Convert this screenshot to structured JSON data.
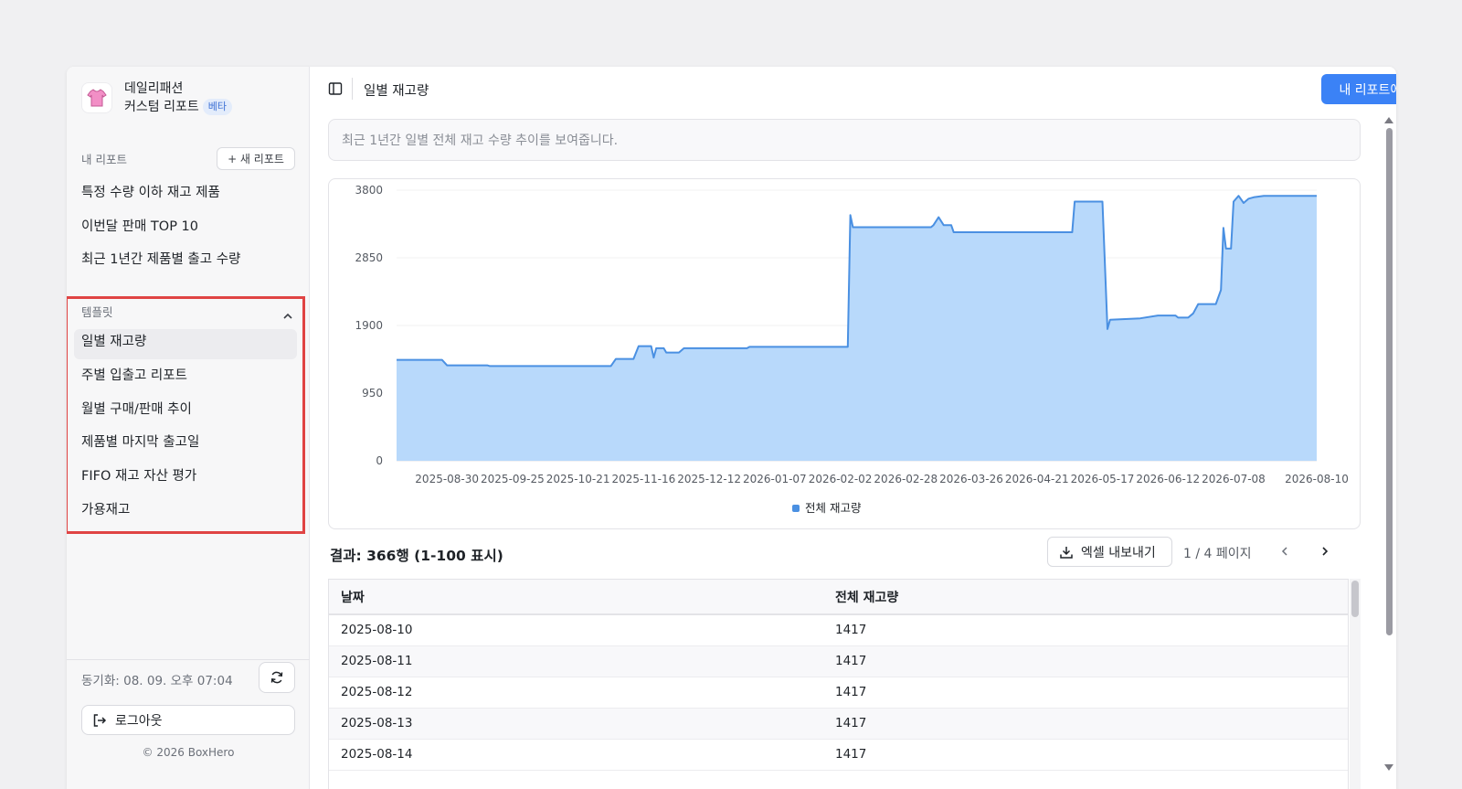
{
  "brand": {
    "name": "데일리패션",
    "subtitle": "커스텀 리포트",
    "badge": "베타"
  },
  "sidebar": {
    "my_reports_heading": "내 리포트",
    "new_report_label": "+ 새 리포트",
    "my_reports": [
      "특정 수량 이하 재고 제품",
      "이번달 판매 TOP 10",
      "최근 1년간 제품별 출고 수량"
    ],
    "templates_heading": "템플릿",
    "templates": [
      "일별 재고량",
      "주별 입출고 리포트",
      "월별 구매/판매 추이",
      "제품별 마지막 출고일",
      "FIFO 재고 자산 평가",
      "가용재고"
    ],
    "sync_text": "동기화: 08. 09. 오후 07:04",
    "logout_label": "로그아웃",
    "copyright": "© 2026 BoxHero"
  },
  "header": {
    "title": "일별 재고량",
    "save_label": "내 리포트에 저장"
  },
  "description": "최근 1년간 일별 전체 재고 수량 추이를 보여줍니다.",
  "chart_data": {
    "type": "area",
    "title": "",
    "xlabel": "",
    "ylabel": "",
    "ylim": [
      0,
      3800
    ],
    "yticks": [
      0,
      950,
      1900,
      2850,
      3800
    ],
    "xticks": [
      "2025-08-30",
      "2025-09-25",
      "2025-10-21",
      "2025-11-16",
      "2025-12-12",
      "2026-01-07",
      "2026-02-02",
      "2026-02-28",
      "2026-03-26",
      "2026-04-21",
      "2026-05-17",
      "2026-06-12",
      "2026-07-08",
      "2026-08-10"
    ],
    "grid": "horizontal",
    "legend_position": "bottom",
    "series": [
      {
        "name": "전체 재고량",
        "color": "#4a90e2",
        "fill": "#b8d9fb",
        "points": [
          [
            "2025-08-10",
            1417
          ],
          [
            "2025-08-28",
            1417
          ],
          [
            "2025-08-30",
            1340
          ],
          [
            "2025-09-15",
            1340
          ],
          [
            "2025-09-16",
            1330
          ],
          [
            "2025-11-03",
            1330
          ],
          [
            "2025-11-05",
            1430
          ],
          [
            "2025-11-12",
            1430
          ],
          [
            "2025-11-14",
            1610
          ],
          [
            "2025-11-19",
            1610
          ],
          [
            "2025-11-20",
            1450
          ],
          [
            "2025-11-21",
            1580
          ],
          [
            "2025-11-24",
            1580
          ],
          [
            "2025-11-25",
            1520
          ],
          [
            "2025-11-30",
            1520
          ],
          [
            "2025-12-02",
            1580
          ],
          [
            "2025-12-27",
            1580
          ],
          [
            "2025-12-28",
            1600
          ],
          [
            "2026-02-05",
            1600
          ],
          [
            "2026-02-06",
            3450
          ],
          [
            "2026-02-07",
            3280
          ],
          [
            "2026-03-10",
            3280
          ],
          [
            "2026-03-11",
            3310
          ],
          [
            "2026-03-13",
            3420
          ],
          [
            "2026-03-15",
            3310
          ],
          [
            "2026-03-18",
            3310
          ],
          [
            "2026-03-19",
            3210
          ],
          [
            "2026-05-05",
            3210
          ],
          [
            "2026-05-06",
            3640
          ],
          [
            "2026-05-17",
            3640
          ],
          [
            "2026-05-19",
            1850
          ],
          [
            "2026-05-20",
            1980
          ],
          [
            "2026-06-01",
            2000
          ],
          [
            "2026-06-08",
            2040
          ],
          [
            "2026-06-15",
            2040
          ],
          [
            "2026-06-16",
            2010
          ],
          [
            "2026-06-20",
            2010
          ],
          [
            "2026-06-22",
            2070
          ],
          [
            "2026-06-24",
            2200
          ],
          [
            "2026-07-01",
            2200
          ],
          [
            "2026-07-03",
            2400
          ],
          [
            "2026-07-04",
            3270
          ],
          [
            "2026-07-05",
            2980
          ],
          [
            "2026-07-07",
            2980
          ],
          [
            "2026-07-08",
            3640
          ],
          [
            "2026-07-10",
            3720
          ],
          [
            "2026-07-12",
            3620
          ],
          [
            "2026-07-14",
            3680
          ],
          [
            "2026-07-16",
            3700
          ],
          [
            "2026-07-20",
            3720
          ],
          [
            "2026-08-10",
            3720
          ]
        ]
      }
    ]
  },
  "results": {
    "title": "결과: 366행 (1-100 표시)",
    "export_label": "엑셀 내보내기",
    "page_info": "1 / 4 페이지",
    "columns": [
      "날짜",
      "전체 재고량"
    ],
    "rows": [
      [
        "2025-08-10",
        "1417"
      ],
      [
        "2025-08-11",
        "1417"
      ],
      [
        "2025-08-12",
        "1417"
      ],
      [
        "2025-08-13",
        "1417"
      ],
      [
        "2025-08-14",
        "1417"
      ]
    ]
  },
  "colors": {
    "accent": "#3b82f6",
    "highlight_border": "#e04444",
    "area_fill": "#b8d9fb",
    "area_line": "#4a90e2"
  }
}
